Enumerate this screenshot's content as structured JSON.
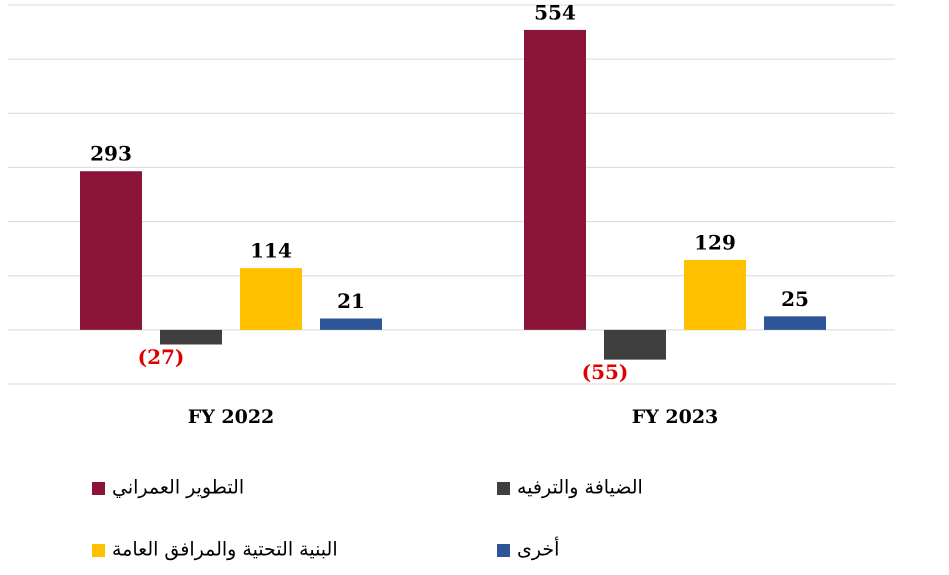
{
  "chart_data": {
    "type": "bar",
    "categories": [
      "FY 2022",
      "FY 2023"
    ],
    "series": [
      {
        "name": "التطوير العمراني",
        "color": "#8b1538",
        "values": [
          293,
          554
        ]
      },
      {
        "name": "الضيافة والترفيه",
        "color": "#3f3f3f",
        "values": [
          -27,
          -55
        ],
        "value_labels": [
          "(27)",
          "(55)"
        ]
      },
      {
        "name": "البنية التحتية والمرافق العامة",
        "color": "#ffc000",
        "values": [
          114,
          129
        ]
      },
      {
        "name": "أخرى",
        "color": "#2e5597",
        "values": [
          21,
          25
        ]
      }
    ],
    "ylim": [
      -100,
      600
    ],
    "yticks": [
      -100,
      0,
      100,
      200,
      300,
      400,
      500,
      600
    ],
    "grid": true,
    "negative_label_color": "#e00000"
  }
}
